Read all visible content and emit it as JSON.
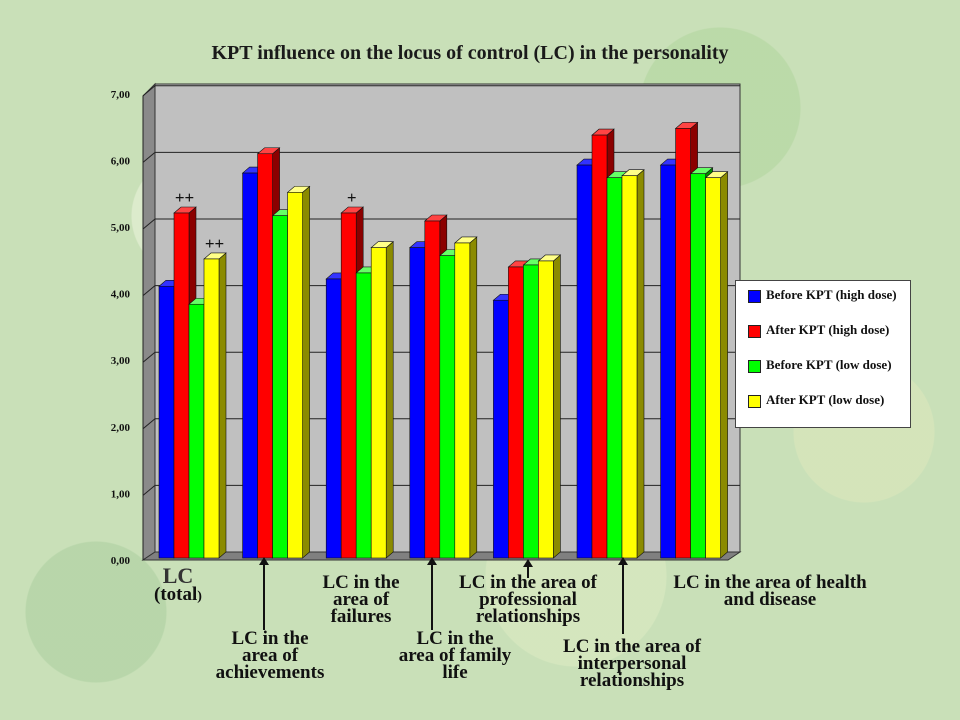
{
  "chart_data": {
    "type": "bar",
    "title": "KPT influence on the locus of control (LC) in the personality",
    "y_ticks": [
      "0,00",
      "1,00",
      "2,00",
      "3,00",
      "4,00",
      "5,00",
      "6,00",
      "7,00"
    ],
    "ylim": [
      0,
      7
    ],
    "grid": true,
    "legend_position": "right",
    "categories": [
      "LC (total)",
      "LC in the area of achievements",
      "LC in the area of failures",
      "LC in the area of family life",
      "LC in the area of professional relationships",
      "LC in the area of interpersonal relationships",
      "LC in the area of health and disease"
    ],
    "series": [
      {
        "name": "Before KPT (high dose)",
        "color": "#0000ff",
        "values": [
          4.08,
          5.78,
          4.19,
          4.66,
          3.87,
          5.9,
          5.9
        ]
      },
      {
        "name": "After KPT (high dose)",
        "color": "#ff0000",
        "values": [
          5.18,
          6.07,
          5.18,
          5.06,
          4.37,
          6.35,
          6.45
        ]
      },
      {
        "name": "Before KPT (low dose)",
        "color": "#00ff00",
        "values": [
          3.81,
          5.14,
          4.28,
          4.54,
          4.4,
          5.71,
          5.77
        ]
      },
      {
        "name": "After KPT (low dose)",
        "color": "#ffff00",
        "values": [
          4.49,
          5.49,
          4.66,
          4.73,
          4.46,
          5.74,
          5.71
        ]
      }
    ],
    "annotations": [
      {
        "text": "++",
        "category": 0,
        "series": 1
      },
      {
        "text": "++",
        "category": 0,
        "series": 3
      },
      {
        "text": "+",
        "category": 2,
        "series": 1
      }
    ]
  },
  "labels": {
    "total": [
      "LC",
      "(total",
      ")"
    ],
    "achievements": [
      "LC in the",
      "area of",
      "achievements"
    ],
    "failures": [
      "LC in the",
      "area of",
      "failures"
    ],
    "family": [
      "LC in the",
      "area of family",
      "life"
    ],
    "professional": [
      "LC in the area of",
      "professional",
      "relationships"
    ],
    "interpersonal": [
      "LC in the area of",
      "interpersonal",
      "relationships"
    ],
    "health": [
      "LC in the area of health",
      "and disease"
    ]
  }
}
